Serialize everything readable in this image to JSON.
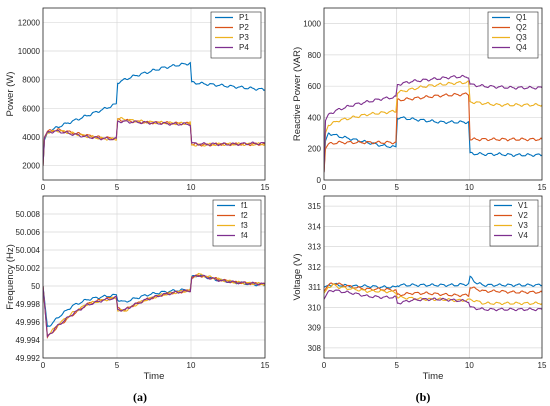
{
  "colors": {
    "c1": "#0072BD",
    "c2": "#D95319",
    "c3": "#EDB120",
    "c4": "#7E2F8E",
    "grid": "#d9d9d9",
    "axis": "#262626"
  },
  "chart_data": [
    {
      "type": "line",
      "panel": "a-top",
      "title": "",
      "xlabel": "",
      "ylabel": "Power (W)",
      "xlim": [
        0,
        15
      ],
      "ylim": [
        1000,
        13000
      ],
      "xticks": [
        "0",
        "5",
        "10",
        "15"
      ],
      "yticks": [
        "2000",
        "4000",
        "6000",
        "8000",
        "10000",
        "12000"
      ],
      "grid": true,
      "legend": "top-right",
      "series": [
        {
          "name": "P1",
          "color": "#0072BD",
          "x": [
            0,
            0.1,
            0.3,
            1,
            2,
            3,
            4,
            4.95,
            5.05,
            6,
            7,
            8,
            9,
            9.95,
            10.05,
            11,
            12,
            13,
            14,
            15
          ],
          "y": [
            2000,
            3800,
            4300,
            4700,
            5100,
            5500,
            5900,
            6300,
            7800,
            8200,
            8500,
            8800,
            9000,
            9150,
            7800,
            7700,
            7600,
            7500,
            7400,
            7300
          ]
        },
        {
          "name": "P2",
          "color": "#D95319",
          "x": [
            0,
            0.1,
            0.3,
            1,
            2,
            3,
            4,
            4.95,
            5.05,
            6,
            7,
            8,
            9,
            9.95,
            10.05,
            11,
            12,
            13,
            14,
            15
          ],
          "y": [
            2000,
            4000,
            4400,
            4500,
            4300,
            4100,
            3950,
            3900,
            5200,
            5100,
            5000,
            5000,
            4950,
            4950,
            3500,
            3450,
            3500,
            3500,
            3500,
            3500
          ]
        },
        {
          "name": "P3",
          "color": "#EDB120",
          "x": [
            0,
            0.1,
            0.3,
            1,
            2,
            3,
            4,
            4.95,
            5.05,
            6,
            7,
            8,
            9,
            9.95,
            10.05,
            11,
            12,
            13,
            14,
            15
          ],
          "y": [
            2000,
            3900,
            4300,
            4450,
            4250,
            4050,
            3900,
            3850,
            5300,
            5150,
            5050,
            5000,
            4950,
            4950,
            3450,
            3450,
            3500,
            3500,
            3500,
            3500
          ]
        },
        {
          "name": "P4",
          "color": "#7E2F8E",
          "x": [
            0,
            0.1,
            0.3,
            1,
            2,
            3,
            4,
            4.95,
            5.05,
            6,
            7,
            8,
            9,
            9.95,
            10.05,
            11,
            12,
            13,
            14,
            15
          ],
          "y": [
            2000,
            3950,
            4350,
            4400,
            4200,
            4000,
            3900,
            3850,
            5100,
            5050,
            5000,
            4950,
            4900,
            4900,
            3550,
            3500,
            3500,
            3500,
            3550,
            3550
          ]
        }
      ]
    },
    {
      "type": "line",
      "panel": "a-bottom",
      "title": "",
      "xlabel": "Time",
      "ylabel": "Frequency (Hz)",
      "xlim": [
        0,
        15
      ],
      "ylim": [
        49.992,
        50.01
      ],
      "xticks": [
        "0",
        "5",
        "10",
        "15"
      ],
      "yticks": [
        "49.992",
        "49.994",
        "49.996",
        "49.998",
        "50",
        "50.002",
        "50.004",
        "50.006",
        "50.008"
      ],
      "grid": true,
      "legend": "top-right",
      "series": [
        {
          "name": "f1",
          "color": "#0072BD",
          "x": [
            0,
            0.3,
            0.6,
            1,
            2,
            3,
            4,
            4.95,
            5.05,
            5.5,
            6,
            7,
            8,
            9,
            9.95,
            10.05,
            10.5,
            11,
            12,
            13,
            14,
            15
          ],
          "y": [
            50,
            49.9955,
            49.9958,
            49.9965,
            49.9978,
            49.9985,
            49.9988,
            49.999,
            49.9985,
            49.9982,
            49.9985,
            49.999,
            49.9993,
            49.9995,
            49.9996,
            50.001,
            50.0012,
            50.001,
            50.0006,
            50.0004,
            50.0002,
            50.0001
          ]
        },
        {
          "name": "f2",
          "color": "#D95319",
          "x": [
            0,
            0.3,
            0.6,
            1,
            2,
            3,
            4,
            4.95,
            5.05,
            5.5,
            6,
            7,
            8,
            9,
            9.95,
            10.05,
            10.5,
            11,
            12,
            13,
            14,
            15
          ],
          "y": [
            50,
            49.9943,
            49.9948,
            49.9955,
            49.9968,
            49.998,
            49.9985,
            49.9988,
            49.9975,
            49.9973,
            49.9978,
            49.9985,
            49.999,
            49.9993,
            49.9995,
            50.0009,
            50.0012,
            50.001,
            50.0007,
            50.0004,
            50.0003,
            50.0002
          ]
        },
        {
          "name": "f3",
          "color": "#EDB120",
          "x": [
            0,
            0.3,
            0.6,
            1,
            2,
            3,
            4,
            4.95,
            5.05,
            5.5,
            6,
            7,
            8,
            9,
            9.95,
            10.05,
            10.5,
            11,
            12,
            13,
            14,
            15
          ],
          "y": [
            50,
            49.9945,
            49.995,
            49.9957,
            49.997,
            49.998,
            49.9984,
            49.9987,
            49.9973,
            49.9972,
            49.9977,
            49.9985,
            49.999,
            49.9993,
            49.9995,
            50.001,
            50.0013,
            50.0011,
            50.0007,
            50.0004,
            50.0003,
            50.0002
          ]
        },
        {
          "name": "f4",
          "color": "#7E2F8E",
          "x": [
            0,
            0.3,
            0.6,
            1,
            2,
            3,
            4,
            4.95,
            5.05,
            5.5,
            6,
            7,
            8,
            9,
            9.95,
            10.05,
            10.5,
            11,
            12,
            13,
            14,
            15
          ],
          "y": [
            50,
            49.9944,
            49.9949,
            49.9956,
            49.9969,
            49.9979,
            49.9984,
            49.9987,
            49.9974,
            49.9973,
            49.9978,
            49.9985,
            49.999,
            49.9993,
            49.9995,
            50.0009,
            50.0012,
            50.001,
            50.0006,
            50.0004,
            50.0003,
            50.0002
          ]
        }
      ]
    },
    {
      "type": "line",
      "panel": "b-top",
      "title": "",
      "xlabel": "",
      "ylabel": "Reactive Power (VAR)",
      "xlim": [
        0,
        15
      ],
      "ylim": [
        0,
        1100
      ],
      "xticks": [
        "0",
        "5",
        "10",
        "15"
      ],
      "yticks": [
        "0",
        "200",
        "400",
        "600",
        "800",
        "1000"
      ],
      "grid": true,
      "legend": "top-right",
      "series": [
        {
          "name": "Q1",
          "color": "#0072BD",
          "x": [
            0,
            0.1,
            0.3,
            1,
            2,
            3,
            4,
            4.95,
            5.05,
            6,
            7,
            8,
            9,
            9.95,
            10.05,
            11,
            12,
            13,
            14,
            15
          ],
          "y": [
            50,
            250,
            300,
            280,
            260,
            240,
            220,
            210,
            400,
            390,
            380,
            370,
            370,
            370,
            170,
            165,
            165,
            160,
            160,
            160
          ]
        },
        {
          "name": "Q2",
          "color": "#D95319",
          "x": [
            0,
            0.1,
            0.3,
            1,
            2,
            3,
            4,
            4.95,
            5.05,
            6,
            7,
            8,
            9,
            9.95,
            10.05,
            11,
            12,
            13,
            14,
            15
          ],
          "y": [
            50,
            200,
            230,
            240,
            240,
            240,
            240,
            240,
            510,
            520,
            530,
            540,
            545,
            550,
            260,
            260,
            260,
            260,
            260,
            260
          ]
        },
        {
          "name": "Q3",
          "color": "#EDB120",
          "x": [
            0,
            0.1,
            0.3,
            1,
            2,
            3,
            4,
            4.95,
            5.05,
            6,
            7,
            8,
            9,
            9.95,
            10.05,
            11,
            12,
            13,
            14,
            15
          ],
          "y": [
            50,
            300,
            350,
            380,
            400,
            420,
            430,
            440,
            560,
            580,
            600,
            610,
            620,
            625,
            500,
            490,
            480,
            480,
            480,
            480
          ]
        },
        {
          "name": "Q4",
          "color": "#7E2F8E",
          "x": [
            0,
            0.1,
            0.3,
            1,
            2,
            3,
            4,
            4.95,
            5.05,
            6,
            7,
            8,
            9,
            9.95,
            10.05,
            11,
            12,
            13,
            14,
            15
          ],
          "y": [
            50,
            380,
            420,
            450,
            480,
            500,
            520,
            530,
            610,
            630,
            640,
            650,
            660,
            660,
            610,
            600,
            595,
            590,
            590,
            590
          ]
        }
      ]
    },
    {
      "type": "line",
      "panel": "b-bottom",
      "title": "",
      "xlabel": "Time",
      "ylabel": "Voltage (V)",
      "xlim": [
        0,
        15
      ],
      "ylim": [
        307.5,
        315.5
      ],
      "xticks": [
        "0",
        "5",
        "10",
        "15"
      ],
      "yticks": [
        "308",
        "309",
        "310",
        "311",
        "312",
        "313",
        "314",
        "315"
      ],
      "grid": true,
      "legend": "top-right",
      "series": [
        {
          "name": "V1",
          "color": "#0072BD",
          "x": [
            0,
            0.3,
            0.7,
            1,
            2,
            3,
            4,
            4.95,
            5.05,
            6,
            7,
            8,
            9,
            9.95,
            10.05,
            10.5,
            11,
            12,
            13,
            14,
            15
          ],
          "y": [
            311,
            311.1,
            311.15,
            311.1,
            311.05,
            311.05,
            311.0,
            311.0,
            311.1,
            311.1,
            311.1,
            311.1,
            311.1,
            311.15,
            311.5,
            311.2,
            311.1,
            311.1,
            311.1,
            311.1,
            311.1
          ]
        },
        {
          "name": "V2",
          "color": "#D95319",
          "x": [
            0,
            0.3,
            0.7,
            1,
            2,
            3,
            4,
            4.95,
            5.05,
            6,
            7,
            8,
            9,
            9.95,
            10.05,
            10.5,
            11,
            12,
            13,
            14,
            15
          ],
          "y": [
            310.8,
            311.1,
            311.2,
            311.15,
            311.0,
            310.9,
            310.9,
            310.85,
            310.6,
            310.7,
            310.7,
            310.65,
            310.6,
            310.6,
            311.0,
            310.9,
            310.8,
            310.8,
            310.75,
            310.75,
            310.75
          ]
        },
        {
          "name": "V3",
          "color": "#EDB120",
          "x": [
            0,
            0.3,
            0.7,
            1,
            2,
            3,
            4,
            4.95,
            5.05,
            6,
            7,
            8,
            9,
            9.95,
            10.05,
            10.5,
            11,
            12,
            13,
            14,
            15
          ],
          "y": [
            310.7,
            311.0,
            311.1,
            311.0,
            310.9,
            310.8,
            310.8,
            310.75,
            310.5,
            310.45,
            310.4,
            310.4,
            310.35,
            310.35,
            310.4,
            310.3,
            310.2,
            310.2,
            310.2,
            310.2,
            310.2
          ]
        },
        {
          "name": "V4",
          "color": "#7E2F8E",
          "x": [
            0,
            0.3,
            0.7,
            1,
            2,
            3,
            4,
            4.95,
            5.05,
            6,
            7,
            8,
            9,
            9.95,
            10.05,
            10.5,
            11,
            12,
            13,
            14,
            15
          ],
          "y": [
            310.4,
            310.8,
            310.85,
            310.8,
            310.7,
            310.55,
            310.5,
            310.5,
            310.2,
            310.35,
            310.4,
            310.4,
            310.35,
            310.3,
            310.0,
            309.95,
            309.9,
            309.9,
            309.9,
            309.9,
            309.9
          ]
        }
      ]
    }
  ],
  "captions": [
    "(a)",
    "(b)"
  ]
}
